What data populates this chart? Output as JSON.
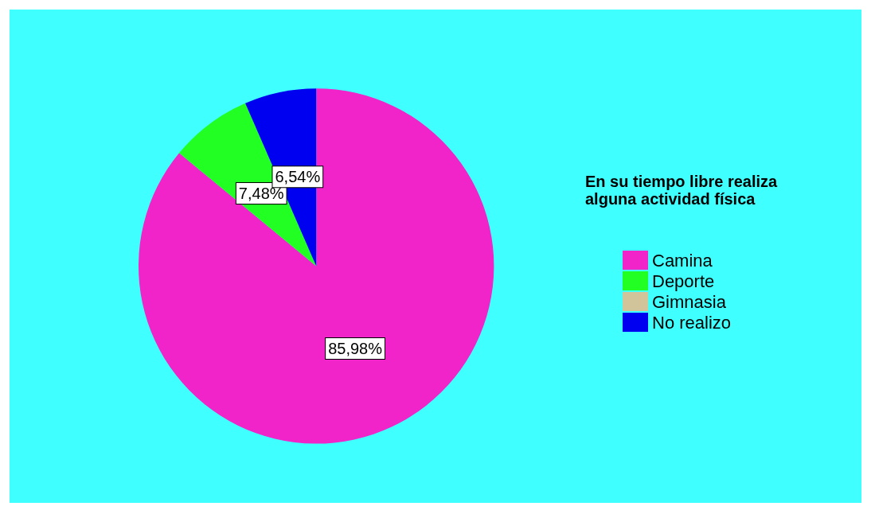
{
  "chart_data": {
    "type": "pie",
    "legend_title": "En su tiempo libre realiza alguna actividad física",
    "categories": [
      "Camina",
      "Deporte",
      "Gimnasia",
      "No realizo"
    ],
    "values": [
      85.98,
      7.48,
      0,
      6.54
    ],
    "colors": [
      "#f024c8",
      "#22ff22",
      "#d2c49a",
      "#0000f0"
    ],
    "value_labels": [
      "85,98%",
      "7,48%",
      null,
      "6,54%"
    ],
    "legend": "right"
  }
}
